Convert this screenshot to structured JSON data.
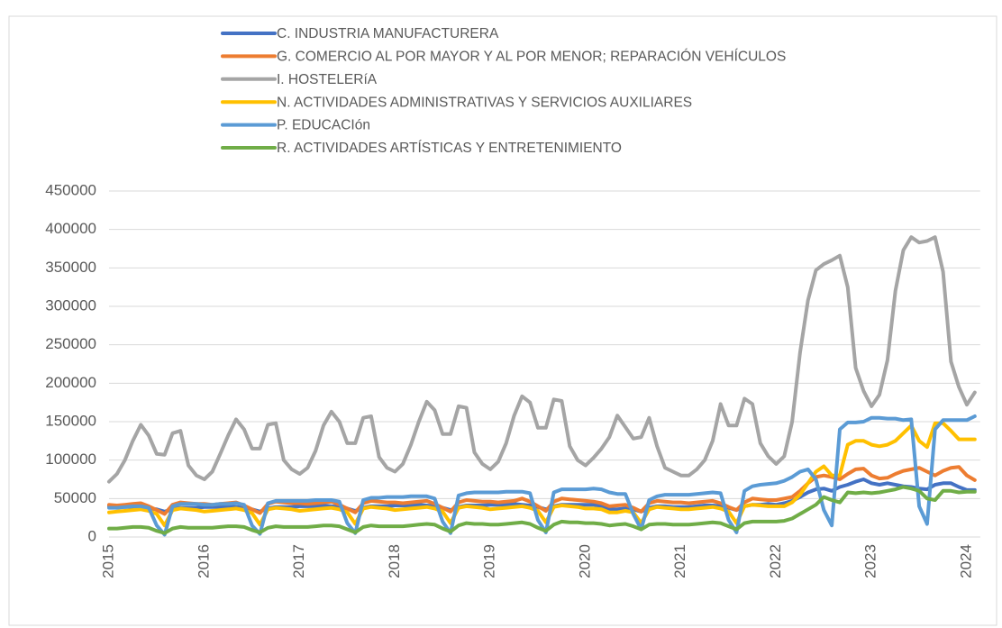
{
  "chart_data": {
    "type": "line",
    "categories": [
      "2015",
      null,
      null,
      null,
      null,
      null,
      null,
      null,
      null,
      null,
      null,
      null,
      "2016",
      null,
      null,
      null,
      null,
      null,
      null,
      null,
      null,
      null,
      null,
      null,
      "2017",
      null,
      null,
      null,
      null,
      null,
      null,
      null,
      null,
      null,
      null,
      null,
      "2018",
      null,
      null,
      null,
      null,
      null,
      null,
      null,
      null,
      null,
      null,
      null,
      "2019",
      null,
      null,
      null,
      null,
      null,
      null,
      null,
      null,
      null,
      null,
      null,
      "2020",
      null,
      null,
      null,
      null,
      null,
      null,
      null,
      null,
      null,
      null,
      null,
      "2021",
      null,
      null,
      null,
      null,
      null,
      null,
      null,
      null,
      null,
      null,
      null,
      "2022",
      null,
      null,
      null,
      null,
      null,
      null,
      null,
      null,
      null,
      null,
      null,
      "2023",
      null,
      null,
      null,
      null,
      null,
      null,
      null,
      null,
      null,
      null,
      null,
      "2024",
      null
    ],
    "ylim": [
      0,
      450000
    ],
    "yticks": [
      0,
      50000,
      100000,
      150000,
      200000,
      250000,
      300000,
      350000,
      400000,
      450000
    ],
    "grid": true,
    "series": [
      {
        "name": "C. INDUSTRIA MANUFACTURERA",
        "color": "#4472c4",
        "values": [
          40000,
          40000,
          39000,
          39000,
          38000,
          37000,
          36000,
          33000,
          36000,
          38000,
          38000,
          38000,
          39000,
          39000,
          39000,
          40000,
          39000,
          38000,
          36000,
          33000,
          37000,
          39000,
          39000,
          39000,
          40000,
          40000,
          40000,
          41000,
          40000,
          39000,
          37000,
          34000,
          38000,
          40000,
          40000,
          40000,
          41000,
          41000,
          41000,
          42000,
          41000,
          40000,
          38000,
          35000,
          39000,
          41000,
          41000,
          41000,
          42000,
          42000,
          42000,
          43000,
          42000,
          41000,
          39000,
          36000,
          40000,
          42000,
          42000,
          42000,
          42000,
          42000,
          40000,
          36000,
          36000,
          37000,
          36000,
          33000,
          38000,
          40000,
          40000,
          39000,
          39000,
          39000,
          40000,
          41000,
          41000,
          40000,
          38000,
          35000,
          40000,
          42000,
          42000,
          43000,
          42000,
          44000,
          47000,
          52000,
          58000,
          62000,
          63000,
          60000,
          65000,
          68000,
          72000,
          75000,
          70000,
          68000,
          70000,
          68000,
          66000,
          65000,
          63000,
          62000,
          68000,
          70000,
          70000,
          65000,
          61000,
          61000
        ]
      },
      {
        "name": "G. COMERCIO AL POR MAYOR Y AL POR MENOR; REPARACIÓN VEHÍCULOS",
        "color": "#ed7d31",
        "values": [
          42000,
          41000,
          42000,
          43000,
          44000,
          40000,
          35000,
          30000,
          42000,
          45000,
          44000,
          43000,
          43000,
          42000,
          43000,
          44000,
          45000,
          41000,
          36000,
          31000,
          43000,
          46000,
          45000,
          44000,
          44000,
          43000,
          44000,
          45000,
          46000,
          42000,
          37000,
          32000,
          44000,
          47000,
          46000,
          45000,
          45000,
          44000,
          45000,
          46000,
          47000,
          43000,
          38000,
          33000,
          45000,
          48000,
          47000,
          46000,
          46000,
          45000,
          46000,
          47000,
          50000,
          46000,
          40000,
          34000,
          46000,
          50000,
          49000,
          48000,
          47000,
          46000,
          44000,
          40000,
          41000,
          42000,
          38000,
          33000,
          44000,
          47000,
          46000,
          45000,
          45000,
          44000,
          45000,
          46000,
          47000,
          44000,
          39000,
          35000,
          45000,
          50000,
          49000,
          48000,
          48000,
          50000,
          52000,
          60000,
          70000,
          78000,
          80000,
          78000,
          75000,
          82000,
          88000,
          89000,
          80000,
          76000,
          77000,
          82000,
          86000,
          88000,
          90000,
          85000,
          80000,
          86000,
          90000,
          91000,
          80000,
          74000
        ]
      },
      {
        "name": "I. HOSTELERíA",
        "color": "#a5a5a5",
        "values": [
          72000,
          82000,
          100000,
          125000,
          146000,
          132000,
          108000,
          107000,
          135000,
          138000,
          93000,
          80000,
          75000,
          85000,
          108000,
          132000,
          153000,
          140000,
          115000,
          115000,
          146000,
          148000,
          100000,
          88000,
          82000,
          90000,
          112000,
          145000,
          163000,
          150000,
          122000,
          122000,
          155000,
          157000,
          104000,
          90000,
          85000,
          95000,
          120000,
          150000,
          176000,
          165000,
          134000,
          134000,
          170000,
          168000,
          110000,
          95000,
          88000,
          98000,
          122000,
          158000,
          183000,
          175000,
          142000,
          142000,
          179000,
          177000,
          118000,
          100000,
          93000,
          103000,
          115000,
          130000,
          158000,
          143000,
          128000,
          130000,
          155000,
          118000,
          90000,
          85000,
          80000,
          80000,
          88000,
          100000,
          125000,
          173000,
          145000,
          145000,
          180000,
          173000,
          122000,
          105000,
          95000,
          105000,
          150000,
          240000,
          308000,
          347000,
          355000,
          360000,
          366000,
          325000,
          220000,
          190000,
          170000,
          185000,
          230000,
          320000,
          373000,
          390000,
          383000,
          385000,
          390000,
          345000,
          228000,
          195000,
          172000,
          188000
        ]
      },
      {
        "name": "N. ACTIVIDADES ADMINISTRATIVAS Y SERVICIOS AUXILIARES",
        "color": "#ffc000",
        "values": [
          32000,
          33000,
          34000,
          35000,
          36000,
          34000,
          30000,
          15000,
          35000,
          37000,
          36000,
          35000,
          33000,
          34000,
          35000,
          36000,
          37000,
          35000,
          31000,
          16000,
          36000,
          38000,
          37000,
          36000,
          34000,
          35000,
          36000,
          37000,
          38000,
          36000,
          32000,
          17000,
          37000,
          39000,
          38000,
          37000,
          35000,
          36000,
          37000,
          38000,
          39000,
          37000,
          33000,
          18000,
          38000,
          40000,
          39000,
          38000,
          36000,
          37000,
          38000,
          39000,
          40000,
          38000,
          34000,
          19000,
          39000,
          41000,
          40000,
          39000,
          37000,
          37000,
          36000,
          32000,
          32000,
          34000,
          32000,
          18000,
          36000,
          39000,
          38000,
          37000,
          36000,
          36000,
          37000,
          38000,
          39000,
          37000,
          33000,
          18000,
          40000,
          42000,
          41000,
          40000,
          40000,
          40000,
          45000,
          55000,
          70000,
          85000,
          92000,
          80000,
          80000,
          120000,
          125000,
          125000,
          120000,
          118000,
          120000,
          125000,
          135000,
          145000,
          125000,
          117000,
          148000,
          148000,
          138000,
          127000,
          127000,
          127000
        ]
      },
      {
        "name": "P. EDUCACIón",
        "color": "#5b9bd5",
        "values": [
          38000,
          38000,
          39000,
          40000,
          40000,
          38000,
          15000,
          3000,
          40000,
          43000,
          43000,
          43000,
          42000,
          42000,
          43000,
          43000,
          44000,
          42000,
          15000,
          4000,
          44000,
          47000,
          47000,
          47000,
          47000,
          47000,
          48000,
          48000,
          48000,
          46000,
          18000,
          5000,
          48000,
          51000,
          51000,
          52000,
          52000,
          52000,
          53000,
          53000,
          53000,
          50000,
          20000,
          5000,
          54000,
          57000,
          58000,
          58000,
          58000,
          58000,
          59000,
          59000,
          59000,
          57000,
          22000,
          6000,
          58000,
          62000,
          62000,
          62000,
          62000,
          63000,
          62000,
          58000,
          56000,
          56000,
          30000,
          10000,
          48000,
          53000,
          55000,
          55000,
          55000,
          55000,
          56000,
          57000,
          58000,
          57000,
          22000,
          6000,
          60000,
          66000,
          68000,
          69000,
          70000,
          73000,
          78000,
          85000,
          88000,
          75000,
          35000,
          15000,
          140000,
          149000,
          149000,
          150000,
          155000,
          155000,
          154000,
          154000,
          152000,
          153000,
          40000,
          17000,
          140000,
          152000,
          152000,
          152000,
          152000,
          157000
        ]
      },
      {
        "name": "R. ACTIVIDADES ARTÍSTICAS Y ENTRETENIMIENTO",
        "color": "#70ad47",
        "values": [
          11000,
          11000,
          12000,
          13000,
          13000,
          12000,
          8000,
          5000,
          11000,
          13000,
          12000,
          12000,
          12000,
          12000,
          13000,
          14000,
          14000,
          13000,
          9000,
          6000,
          12000,
          14000,
          13000,
          13000,
          13000,
          13000,
          14000,
          15000,
          15000,
          14000,
          10000,
          6000,
          13000,
          15000,
          14000,
          14000,
          14000,
          14000,
          15000,
          16000,
          17000,
          16000,
          11000,
          7000,
          15000,
          18000,
          17000,
          17000,
          16000,
          16000,
          17000,
          18000,
          19000,
          17000,
          12000,
          8000,
          16000,
          20000,
          19000,
          19000,
          18000,
          18000,
          17000,
          15000,
          16000,
          17000,
          14000,
          10000,
          16000,
          17000,
          17000,
          16000,
          16000,
          16000,
          17000,
          18000,
          19000,
          18000,
          14000,
          10000,
          18000,
          20000,
          20000,
          20000,
          20000,
          21000,
          24000,
          30000,
          36000,
          42000,
          52000,
          48000,
          45000,
          58000,
          57000,
          58000,
          57000,
          58000,
          60000,
          62000,
          65000,
          63000,
          60000,
          50000,
          48000,
          60000,
          60000,
          58000,
          59000,
          59000
        ]
      }
    ]
  }
}
